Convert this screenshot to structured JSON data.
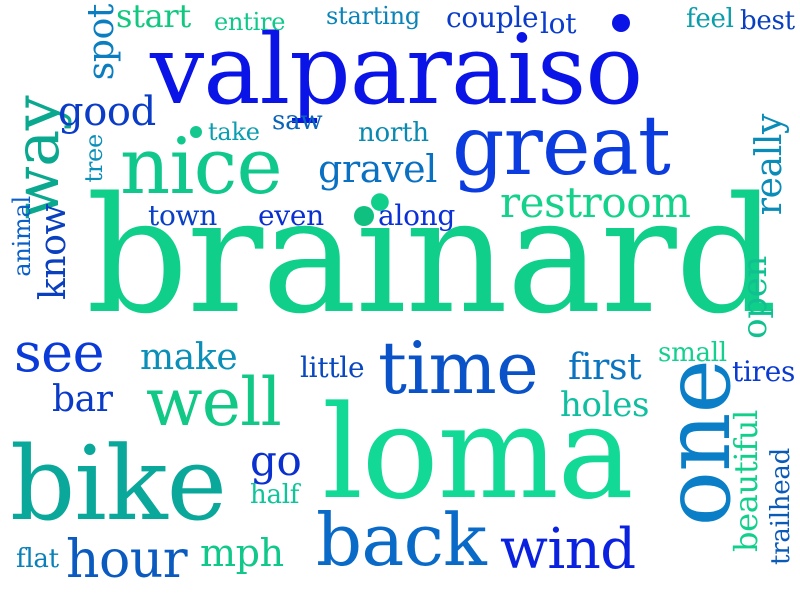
{
  "words": [
    {
      "text": "valparaiso",
      "color": "#0a14e6"
    },
    {
      "text": "brainard",
      "color": "#0fcf8a"
    },
    {
      "text": "loma",
      "color": "#12d996"
    },
    {
      "text": "bike",
      "color": "#0aa89a"
    },
    {
      "text": "one",
      "color": "#0a7fc8"
    },
    {
      "text": "great",
      "color": "#0a3ce0"
    },
    {
      "text": "nice",
      "color": "#10c88c"
    },
    {
      "text": "time",
      "color": "#0a52c8"
    },
    {
      "text": "well",
      "color": "#12c886"
    },
    {
      "text": "back",
      "color": "#0a6ac8"
    },
    {
      "text": "wind",
      "color": "#0a22e0"
    },
    {
      "text": "way",
      "color": "#0aa88e"
    },
    {
      "text": "restroom",
      "color": "#14d28a"
    },
    {
      "text": "hour",
      "color": "#0a5ac0"
    },
    {
      "text": "see",
      "color": "#0a3ad8"
    },
    {
      "text": "gravel",
      "color": "#0a70c2"
    },
    {
      "text": "good",
      "color": "#0a3cc8"
    },
    {
      "text": "make",
      "color": "#0a90b8"
    },
    {
      "text": "mph",
      "color": "#10c88a"
    },
    {
      "text": "first",
      "color": "#0a74c0"
    },
    {
      "text": "holes",
      "color": "#10bfa0"
    },
    {
      "text": "go",
      "color": "#0a30d0"
    },
    {
      "text": "bar",
      "color": "#0a3ac8"
    },
    {
      "text": "spot",
      "color": "#0a7ec0"
    },
    {
      "text": "start",
      "color": "#12c880"
    },
    {
      "text": "know",
      "color": "#0a40c0"
    },
    {
      "text": "really",
      "color": "#0a8cb8"
    },
    {
      "text": "open",
      "color": "#10c090"
    },
    {
      "text": "beautiful",
      "color": "#10d08c"
    },
    {
      "text": "town",
      "color": "#0a40c8"
    },
    {
      "text": "even",
      "color": "#0a30d0"
    },
    {
      "text": "along",
      "color": "#0a30d8"
    },
    {
      "text": "north",
      "color": "#0a8ab0"
    },
    {
      "text": "take",
      "color": "#0a9eb0"
    },
    {
      "text": "saw",
      "color": "#0a64b8"
    },
    {
      "text": "tree",
      "color": "#0a90b8"
    },
    {
      "text": "animal",
      "color": "#0a60c8"
    },
    {
      "text": "little",
      "color": "#0a48c0"
    },
    {
      "text": "small",
      "color": "#14d08e"
    },
    {
      "text": "tires",
      "color": "#0a3ad0"
    },
    {
      "text": "half",
      "color": "#10c49a"
    },
    {
      "text": "flat",
      "color": "#0a80b8"
    },
    {
      "text": "trailhead",
      "color": "#0a5ab8"
    },
    {
      "text": "entire",
      "color": "#10c88a"
    },
    {
      "text": "starting",
      "color": "#0a84b8"
    },
    {
      "text": "couple",
      "color": "#0a3cc8"
    },
    {
      "text": "lot",
      "color": "#0a3cd0"
    },
    {
      "text": "feel",
      "color": "#0a9eaa"
    },
    {
      "text": "best",
      "color": "#0a40c0"
    }
  ],
  "dots": [
    {
      "color": "#0a14e6"
    },
    {
      "color": "#12c88e"
    },
    {
      "color": "#10c080"
    }
  ]
}
